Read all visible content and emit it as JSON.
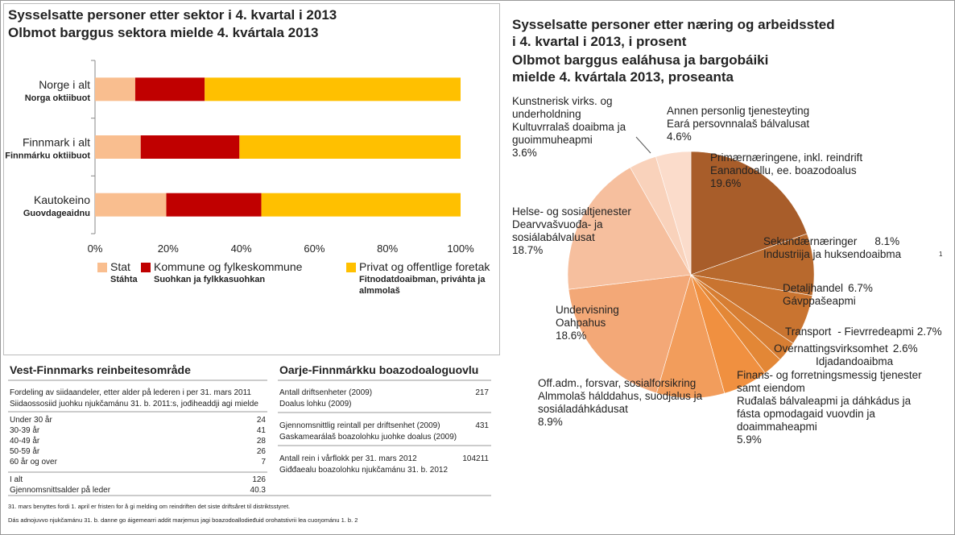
{
  "chart_data": [
    {
      "type": "bar",
      "orientation": "horizontal",
      "stacked": true,
      "title": "Sysselsatte personer etter sektor i 4. kvartal i 2013",
      "subtitle": "Olbmot barggus sektora mielde 4. kvártala 2013",
      "categories": [
        "Norge i alt",
        "Finnmark i alt",
        "Kautokeino"
      ],
      "category_sublabels": [
        "Norga oktiibuot",
        "Finnmárku oktiibuot",
        "Guovdageaidnu"
      ],
      "series": [
        {
          "name": "Stat",
          "sub_name": "Stáhta",
          "color": "#f9be8f",
          "values": [
            11,
            12.5,
            19.5
          ]
        },
        {
          "name": "Kommune og fylkeskommune",
          "sub_name": "Suohkan ja fylkkasuohkan",
          "color": "#c00000",
          "values": [
            19,
            27,
            26
          ]
        },
        {
          "name": "Privat og offentlige foretak",
          "sub_name": "Fitnodatdoaibman, priváhta ja almmolaš",
          "color": "#ffc000",
          "values": [
            70,
            60.5,
            54.5
          ]
        }
      ],
      "xlim": [
        0,
        100
      ],
      "xticks": [
        {
          "value": 0,
          "label": "0%"
        },
        {
          "value": 20,
          "label": "20%"
        },
        {
          "value": 40,
          "label": "40%"
        },
        {
          "value": 60,
          "label": "60%"
        },
        {
          "value": 80,
          "label": "80%"
        },
        {
          "value": 100,
          "label": "100%"
        }
      ],
      "grid": false,
      "legend": "bottom"
    },
    {
      "type": "pie",
      "title": [
        "Sysselsatte personer etter næring og arbeidssted",
        "i 4. kvartal i 2013, i prosent"
      ],
      "subtitle": [
        "Olbmot barggus ealáhusa ja bargobáiki",
        "mielde 4. kvártala 2013, proseanta"
      ],
      "categories": [
        "Primærnæringene, inkl. reindrift",
        "Sekundærnæringer",
        "Detaljhandel",
        "Transport",
        "Overnattingsvirksomhet",
        "Finans- og forretningsmessig tjenester samt eiendom",
        "Off.adm., forsvar, sosialforsikring",
        "Undervisning",
        "Helse- og sosialtjenester",
        "Kunstnerisk virks. og underholdning",
        "Annen personlig tjenesteyting"
      ],
      "sami_names": [
        "Eanandoallu, ee. boazodoalus",
        "Industriija ja huksendoaibma",
        "Gávppašeapmi",
        "- Fievrredeapmi",
        "Idjadandoaibma",
        "Ruđalaš bálvaleapmi ja dáhkádus ja fásta opmodagaid vuovdin ja doaimmaheapmi",
        "Almmolaš hálddahus, suodjalus ja sosiáladáhkádusat",
        "Oahpahus",
        "Dearvvašvuođa- ja sosiálabálvalusat",
        "Kultuvrralaš doaibma ja guoimmuheapmi",
        "Eará persovnnalaš bálvalusat"
      ],
      "values": [
        19.6,
        8.1,
        6.7,
        2.7,
        2.6,
        5.9,
        8.9,
        18.6,
        18.7,
        3.6,
        4.6
      ],
      "value_labels": [
        "19.6%",
        "8.1%",
        "6.7%",
        "2.7%",
        "2.6%",
        "5.9%",
        "8.9%",
        "18.6%",
        "18.7%",
        "3.6%",
        "4.6%"
      ],
      "colors": [
        "#a85d2a",
        "#b8692d",
        "#c97430",
        "#d77e33",
        "#e38736",
        "#f09040",
        "#f29d5c",
        "#f3a877",
        "#f6bf9e",
        "#f9d2bb",
        "#fbdccb"
      ],
      "footnote_mark": "1"
    }
  ],
  "tables": [
    {
      "title": "Vest-Finnmarks reinbeitesområde",
      "header": [
        "Fordeling av siidaandeler, etter alder på lederen i per 31. mars 2011",
        "Siidaossosiid juohku njukčamánu 31. b. 2011:s, jođiheaddji agi mielde"
      ],
      "rows": [
        [
          "Under 30 år",
          24
        ],
        [
          "30-39 år",
          41
        ],
        [
          "40-49 år",
          28
        ],
        [
          "50-59 år",
          26
        ],
        [
          "60 år og over",
          7
        ]
      ],
      "total_rows": [
        [
          "I alt",
          126
        ],
        [
          "Gjennomsnittsalder på leder",
          40.3
        ]
      ]
    },
    {
      "title": "Oarje-Finnmárkku boazodoaloguovlu",
      "rows": [
        {
          "labels": [
            "Antall driftsenheter (2009)",
            "Doalus lohku (2009)"
          ],
          "value": 217
        },
        {
          "labels": [
            "Gjennomsnittlig reintall per driftsenhet (2009)",
            "Gaskamearálaš boazolohku juohke doalus (2009)"
          ],
          "value": 431
        },
        {
          "labels": [
            "Antall rein i vårflokk per 31. mars 2012",
            "Giđđaealu boazolohku njukčamánu 31. b. 2012"
          ],
          "value": 104211
        }
      ]
    }
  ],
  "footnotes": [
    "31. mars benyttes fordi 1. april er fristen for å gi melding om reindriften det siste driftsåret til distriktsstyret.",
    "Dás adnojuvvo njukčamánu 31. b. danne go áigemearri addit marjemus jagi boazodoallodieđuid orohatstivrii lea cuoŋománu 1. b. 2"
  ]
}
